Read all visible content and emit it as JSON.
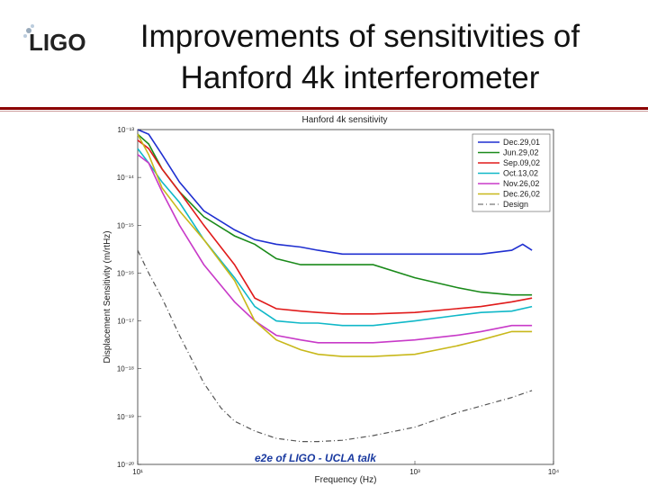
{
  "slide": {
    "logo_text": "LIGO",
    "title_line1": "Improvements of sensitivities of",
    "title_line2": "Hanford 4k interferometer",
    "footer": "e2e of LIGO - UCLA talk"
  },
  "colors": {
    "divider": "#8b0000",
    "footer_text": "#1a3aa0"
  },
  "chart_data": {
    "type": "line",
    "title": "Hanford 4k sensitivity",
    "xlabel": "Frequency (Hz)",
    "ylabel": "Displacement Sensitivity (m/rtHz)",
    "x_scale": "log",
    "y_scale": "log",
    "xlim": [
      10,
      10000
    ],
    "ylim": [
      1e-20,
      1e-13
    ],
    "x_ticks": [
      {
        "value": 10,
        "label": "10¹"
      },
      {
        "value": 1000,
        "label": "10³"
      },
      {
        "value": 10000,
        "label": "10⁴"
      }
    ],
    "y_ticks": [
      {
        "value": 1e-13,
        "label": "10⁻¹³"
      },
      {
        "value": 1e-14,
        "label": "10⁻¹⁴"
      },
      {
        "value": 1e-15,
        "label": "10⁻¹⁵"
      },
      {
        "value": 1e-16,
        "label": "10⁻¹⁶"
      },
      {
        "value": 1e-17,
        "label": "10⁻¹⁷"
      },
      {
        "value": 1e-18,
        "label": "10⁻¹⁸"
      },
      {
        "value": 1e-19,
        "label": "10⁻¹⁹"
      },
      {
        "value": 1e-20,
        "label": "10⁻²⁰"
      }
    ],
    "grid": false,
    "legend_position": "top-right",
    "series": [
      {
        "name": "Dec.29,01",
        "color": "#1f2fd0",
        "dash": "",
        "x": [
          10,
          12,
          15,
          20,
          30,
          50,
          70,
          100,
          150,
          200,
          300,
          500,
          1000,
          2000,
          3000,
          5000,
          6000,
          7000
        ],
        "y": [
          1e-13,
          8e-14,
          3e-14,
          8e-15,
          2e-15,
          8e-16,
          5e-16,
          4e-16,
          3.5e-16,
          3e-16,
          2.5e-16,
          2.5e-16,
          2.5e-16,
          2.5e-16,
          2.5e-16,
          3e-16,
          4e-16,
          3e-16
        ]
      },
      {
        "name": "Jun.29,02",
        "color": "#1a8a1a",
        "dash": "",
        "x": [
          10,
          12,
          15,
          20,
          30,
          50,
          70,
          100,
          150,
          200,
          300,
          500,
          1000,
          2000,
          3000,
          5000,
          7000
        ],
        "y": [
          8e-14,
          5e-14,
          1.5e-14,
          5e-15,
          1.5e-15,
          6e-16,
          4e-16,
          2e-16,
          1.5e-16,
          1.5e-16,
          1.5e-16,
          1.5e-16,
          8e-17,
          5e-17,
          4e-17,
          3.5e-17,
          3.5e-17
        ]
      },
      {
        "name": "Sep.09,02",
        "color": "#e01a1a",
        "dash": "",
        "x": [
          10,
          12,
          15,
          20,
          30,
          50,
          70,
          100,
          150,
          200,
          300,
          500,
          1000,
          2000,
          3000,
          5000,
          7000
        ],
        "y": [
          6e-14,
          4e-14,
          1.5e-14,
          5e-15,
          1e-15,
          1.5e-16,
          3e-17,
          1.8e-17,
          1.6e-17,
          1.5e-17,
          1.4e-17,
          1.4e-17,
          1.5e-17,
          1.8e-17,
          2e-17,
          2.5e-17,
          3e-17
        ]
      },
      {
        "name": "Oct.13,02",
        "color": "#10b8c8",
        "dash": "",
        "x": [
          10,
          12,
          15,
          20,
          30,
          50,
          70,
          100,
          150,
          200,
          300,
          500,
          1000,
          2000,
          3000,
          5000,
          7000
        ],
        "y": [
          4e-14,
          2e-14,
          8e-15,
          3e-15,
          5e-16,
          8e-17,
          2e-17,
          1e-17,
          9e-18,
          9e-18,
          8e-18,
          8e-18,
          1e-17,
          1.3e-17,
          1.5e-17,
          1.6e-17,
          2e-17
        ]
      },
      {
        "name": "Nov.26,02",
        "color": "#c83ac8",
        "dash": "",
        "x": [
          10,
          12,
          15,
          20,
          30,
          50,
          70,
          100,
          150,
          200,
          300,
          500,
          1000,
          2000,
          3000,
          5000,
          7000
        ],
        "y": [
          3e-14,
          2e-14,
          5e-15,
          1e-15,
          1.5e-16,
          2.5e-17,
          1e-17,
          5e-18,
          4e-18,
          3.5e-18,
          3.5e-18,
          3.5e-18,
          4e-18,
          5e-18,
          6e-18,
          8e-18,
          8e-18
        ]
      },
      {
        "name": "Dec.26,02",
        "color": "#c8b81a",
        "dash": "",
        "x": [
          10,
          12,
          15,
          20,
          30,
          50,
          70,
          100,
          150,
          200,
          300,
          500,
          1000,
          2000,
          3000,
          5000,
          7000
        ],
        "y": [
          8e-14,
          3e-14,
          6e-15,
          2e-15,
          5e-16,
          7e-17,
          1e-17,
          4e-18,
          2.5e-18,
          2e-18,
          1.8e-18,
          1.8e-18,
          2e-18,
          3e-18,
          4e-18,
          6e-18,
          6e-18
        ]
      },
      {
        "name": "Design",
        "color": "#555555",
        "dash": "6,3,1,3",
        "x": [
          10,
          12,
          15,
          20,
          30,
          40,
          50,
          70,
          100,
          150,
          200,
          300,
          500,
          1000,
          2000,
          5000,
          7000
        ],
        "y": [
          3e-16,
          1e-16,
          3e-17,
          5e-18,
          5e-19,
          1.5e-19,
          8e-20,
          5e-20,
          3.5e-20,
          3e-20,
          3e-20,
          3.2e-20,
          4e-20,
          6e-20,
          1.2e-19,
          2.5e-19,
          3.5e-19
        ]
      }
    ]
  }
}
